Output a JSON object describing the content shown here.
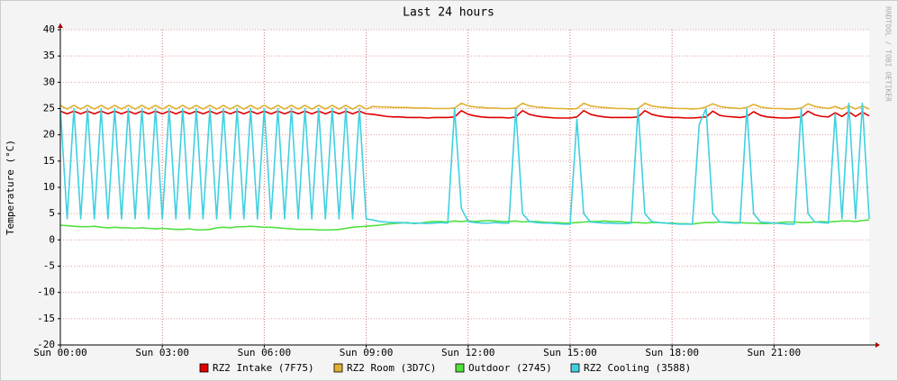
{
  "chart_data": {
    "type": "line",
    "title": "Last 24 hours",
    "y_label": "Temperature (°C)",
    "credit": "RRDTOOL / TOBI OETIKER",
    "x": [
      0,
      0.2,
      0.4,
      0.6,
      0.8,
      1,
      1.2,
      1.4,
      1.6,
      1.8,
      2,
      2.2,
      2.4,
      2.6,
      2.8,
      3,
      3.2,
      3.4,
      3.6,
      3.8,
      4,
      4.2,
      4.4,
      4.6,
      4.8,
      5,
      5.2,
      5.4,
      5.6,
      5.8,
      6,
      6.2,
      6.4,
      6.6,
      6.8,
      7,
      7.2,
      7.4,
      7.6,
      7.8,
      8,
      8.2,
      8.4,
      8.6,
      8.8,
      9,
      9.2,
      9.4,
      9.6,
      9.8,
      10,
      10.2,
      10.4,
      10.6,
      10.8,
      11,
      11.2,
      11.4,
      11.6,
      11.8,
      12,
      12.2,
      12.4,
      12.6,
      12.8,
      13,
      13.2,
      13.4,
      13.6,
      13.8,
      14,
      14.2,
      14.4,
      14.6,
      14.8,
      15,
      15.2,
      15.4,
      15.6,
      15.8,
      16,
      16.2,
      16.4,
      16.6,
      16.8,
      17,
      17.2,
      17.4,
      17.6,
      17.8,
      18,
      18.2,
      18.4,
      18.6,
      18.8,
      19,
      19.2,
      19.4,
      19.6,
      19.8,
      20,
      20.2,
      20.4,
      20.6,
      20.8,
      21,
      21.2,
      21.4,
      21.6,
      21.8,
      22,
      22.2,
      22.4,
      22.6,
      22.8,
      23,
      23.2,
      23.4,
      23.6,
      23.8
    ],
    "series": [
      {
        "name": "RZ2 Intake (7F75)",
        "color": "#e00000",
        "values": [
          24.5,
          24,
          24.5,
          24,
          24.5,
          24,
          24.5,
          24,
          24.5,
          24,
          24.5,
          24,
          24.5,
          24,
          24.5,
          24,
          24.5,
          24,
          24.5,
          24,
          24.5,
          24,
          24.5,
          24,
          24.5,
          24,
          24.5,
          24,
          24.5,
          24,
          24.5,
          24,
          24.5,
          24,
          24.5,
          24,
          24.5,
          24,
          24.5,
          24,
          24.5,
          24,
          24.5,
          24,
          24.5,
          24,
          23.9,
          23.7,
          23.5,
          23.4,
          23.4,
          23.3,
          23.3,
          23.3,
          23.2,
          23.3,
          23.3,
          23.3,
          23.4,
          24.6,
          23.9,
          23.6,
          23.4,
          23.3,
          23.3,
          23.3,
          23.2,
          23.4,
          24.6,
          23.9,
          23.6,
          23.4,
          23.3,
          23.2,
          23.2,
          23.2,
          23.4,
          24.6,
          23.9,
          23.6,
          23.4,
          23.3,
          23.3,
          23.3,
          23.3,
          23.4,
          24.6,
          23.9,
          23.6,
          23.4,
          23.3,
          23.3,
          23.2,
          23.2,
          23.3,
          23.4,
          24.5,
          23.7,
          23.5,
          23.4,
          23.3,
          23.5,
          24.4,
          23.7,
          23.4,
          23.3,
          23.2,
          23.2,
          23.3,
          23.4,
          24.5,
          23.8,
          23.5,
          23.4,
          24.2,
          23.5,
          24.4,
          23.5,
          24.3,
          23.6
        ]
      },
      {
        "name": "RZ2 Room (3D7C)",
        "color": "#e0b030",
        "values": [
          25.6,
          24.9,
          25.6,
          24.9,
          25.6,
          24.9,
          25.6,
          24.9,
          25.6,
          24.9,
          25.6,
          24.9,
          25.6,
          24.9,
          25.6,
          24.9,
          25.6,
          24.9,
          25.6,
          24.9,
          25.6,
          24.9,
          25.6,
          24.9,
          25.6,
          24.9,
          25.6,
          24.9,
          25.6,
          24.9,
          25.6,
          24.9,
          25.6,
          24.9,
          25.6,
          24.9,
          25.6,
          24.9,
          25.6,
          24.9,
          25.6,
          24.9,
          25.6,
          24.9,
          25.6,
          24.9,
          25.4,
          25.3,
          25.3,
          25.2,
          25.2,
          25.2,
          25.1,
          25.1,
          25.1,
          25,
          25,
          25,
          25.1,
          26,
          25.5,
          25.3,
          25.2,
          25.1,
          25.1,
          25,
          25,
          25.1,
          26,
          25.5,
          25.3,
          25.2,
          25.1,
          25,
          25,
          24.9,
          25,
          26,
          25.5,
          25.3,
          25.2,
          25.1,
          25,
          25,
          24.9,
          25,
          26,
          25.5,
          25.3,
          25.2,
          25.1,
          25,
          25,
          24.9,
          25,
          25.3,
          25.9,
          25.4,
          25.2,
          25.1,
          25,
          25.2,
          25.8,
          25.3,
          25.1,
          25,
          25,
          24.9,
          24.9,
          25.1,
          25.9,
          25.4,
          25.2,
          25,
          25.4,
          24.9,
          25.5,
          24.9,
          25.5,
          24.9
        ]
      },
      {
        "name": "Outdoor (2745)",
        "color": "#50e040",
        "values": [
          2.8,
          2.7,
          2.6,
          2.5,
          2.5,
          2.6,
          2.4,
          2.3,
          2.4,
          2.3,
          2.3,
          2.2,
          2.3,
          2.2,
          2.1,
          2.2,
          2.1,
          2,
          2,
          2.1,
          1.9,
          1.9,
          2,
          2.3,
          2.4,
          2.3,
          2.5,
          2.5,
          2.6,
          2.5,
          2.4,
          2.4,
          2.3,
          2.2,
          2.1,
          2,
          2,
          2,
          1.9,
          1.9,
          1.9,
          2,
          2.2,
          2.4,
          2.5,
          2.6,
          2.7,
          2.8,
          3,
          3.1,
          3.2,
          3.3,
          3.1,
          3.2,
          3.4,
          3.5,
          3.5,
          3.4,
          3.6,
          3.5,
          3.6,
          3.5,
          3.6,
          3.7,
          3.6,
          3.5,
          3.5,
          3.6,
          3.4,
          3.5,
          3.5,
          3.4,
          3.3,
          3.3,
          3.2,
          3.2,
          3.3,
          3.4,
          3.5,
          3.5,
          3.6,
          3.5,
          3.5,
          3.4,
          3.3,
          3.3,
          3.2,
          3.3,
          3.3,
          3.2,
          3.2,
          3.1,
          3.1,
          3,
          3.2,
          3.3,
          3.3,
          3.4,
          3.4,
          3.3,
          3.3,
          3.2,
          3.2,
          3.1,
          3.1,
          3.2,
          3.3,
          3.4,
          3.4,
          3.3,
          3.3,
          3.4,
          3.5,
          3.4,
          3.5,
          3.6,
          3.6,
          3.5,
          3.7,
          3.8
        ]
      },
      {
        "name": "RZ2 Cooling (3588)",
        "color": "#40d0e0",
        "values": [
          25,
          4,
          25,
          4,
          25,
          4,
          25,
          4,
          25,
          4,
          25,
          4,
          25,
          4,
          25,
          4,
          25,
          4,
          25,
          4,
          25,
          4,
          25,
          4,
          25,
          4,
          25,
          4,
          25,
          4,
          25,
          4,
          25,
          4,
          25,
          4,
          25,
          4,
          25,
          4,
          25,
          4,
          25,
          4,
          25,
          4,
          3.8,
          3.5,
          3.4,
          3.3,
          3.3,
          3.2,
          3.2,
          3.2,
          3.1,
          3.2,
          3.3,
          3.2,
          25,
          6,
          3.5,
          3.3,
          3.2,
          3.2,
          3.3,
          3.2,
          3.2,
          25,
          5,
          3.5,
          3.3,
          3.2,
          3.2,
          3.1,
          3,
          3,
          23,
          5,
          3.4,
          3.3,
          3.2,
          3.2,
          3.1,
          3.1,
          3.2,
          25,
          5,
          3.5,
          3.3,
          3.2,
          3.1,
          3,
          3,
          3,
          22,
          25,
          5,
          3.4,
          3.3,
          3.2,
          3.2,
          25,
          5,
          3.4,
          3.3,
          3.2,
          3.1,
          3,
          3,
          25,
          5,
          3.4,
          3.3,
          3.2,
          24,
          4,
          26,
          4,
          26,
          4
        ]
      }
    ],
    "xlim": [
      0,
      23.8
    ],
    "xticks": [
      {
        "value": 0,
        "label": "Sun 00:00"
      },
      {
        "value": 3,
        "label": "Sun 03:00"
      },
      {
        "value": 6,
        "label": "Sun 06:00"
      },
      {
        "value": 9,
        "label": "Sun 09:00"
      },
      {
        "value": 12,
        "label": "Sun 12:00"
      },
      {
        "value": 15,
        "label": "Sun 15:00"
      },
      {
        "value": 18,
        "label": "Sun 18:00"
      },
      {
        "value": 21,
        "label": "Sun 21:00"
      }
    ],
    "ylim": [
      -20,
      40
    ],
    "yticks": [
      -20,
      -15,
      -10,
      -5,
      0,
      5,
      10,
      15,
      20,
      25,
      30,
      35,
      40
    ],
    "grid": true
  }
}
